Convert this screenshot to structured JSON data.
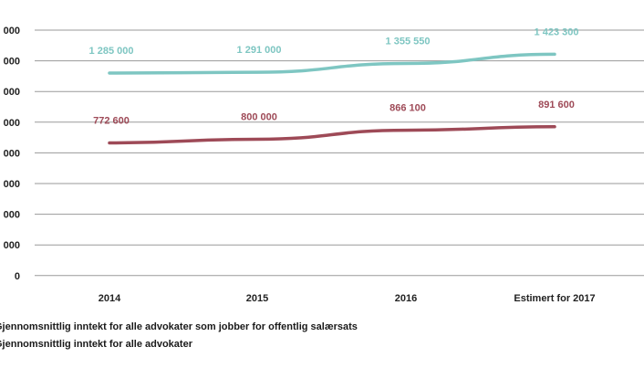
{
  "chart_data": {
    "type": "line",
    "x": [
      "2014",
      "2015",
      "2016",
      "Estimert for 2017"
    ],
    "y_tick_labels": [
      "000",
      "000",
      "000",
      "000",
      "000",
      "000",
      "000",
      "000",
      "0"
    ],
    "ylim": [
      -200000,
      1600000
    ],
    "grid": true,
    "legend_placement": "bottom-left",
    "series": [
      {
        "name": "Gjennomsnittlig inntekt for alle advokater som jobber for offentlig salærsats",
        "values": [
          772600,
          800000,
          866100,
          891600
        ],
        "labels": [
          "772 600",
          "800 000",
          "866 100",
          "891 600"
        ],
        "color": "#9e4a57"
      },
      {
        "name": "Gjennomsnittlig inntekt for alle advokater",
        "values": [
          1285000,
          1291000,
          1355550,
          1423300
        ],
        "labels": [
          "1 285 000",
          "1 291 000",
          "1 355 550",
          "1 423 300"
        ],
        "color": "#7ec6c2"
      }
    ]
  }
}
